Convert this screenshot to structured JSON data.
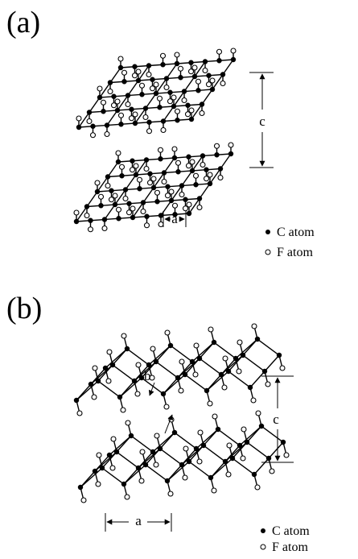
{
  "panels": [
    {
      "label": "(a)",
      "dimension_labels": [
        "c",
        "a"
      ],
      "legend": [
        "C atom",
        "F atom"
      ]
    },
    {
      "label": "(b)",
      "dimension_labels": [
        "c",
        "a"
      ],
      "annotation": "b",
      "legend": [
        "C atom",
        "F atom"
      ]
    }
  ]
}
